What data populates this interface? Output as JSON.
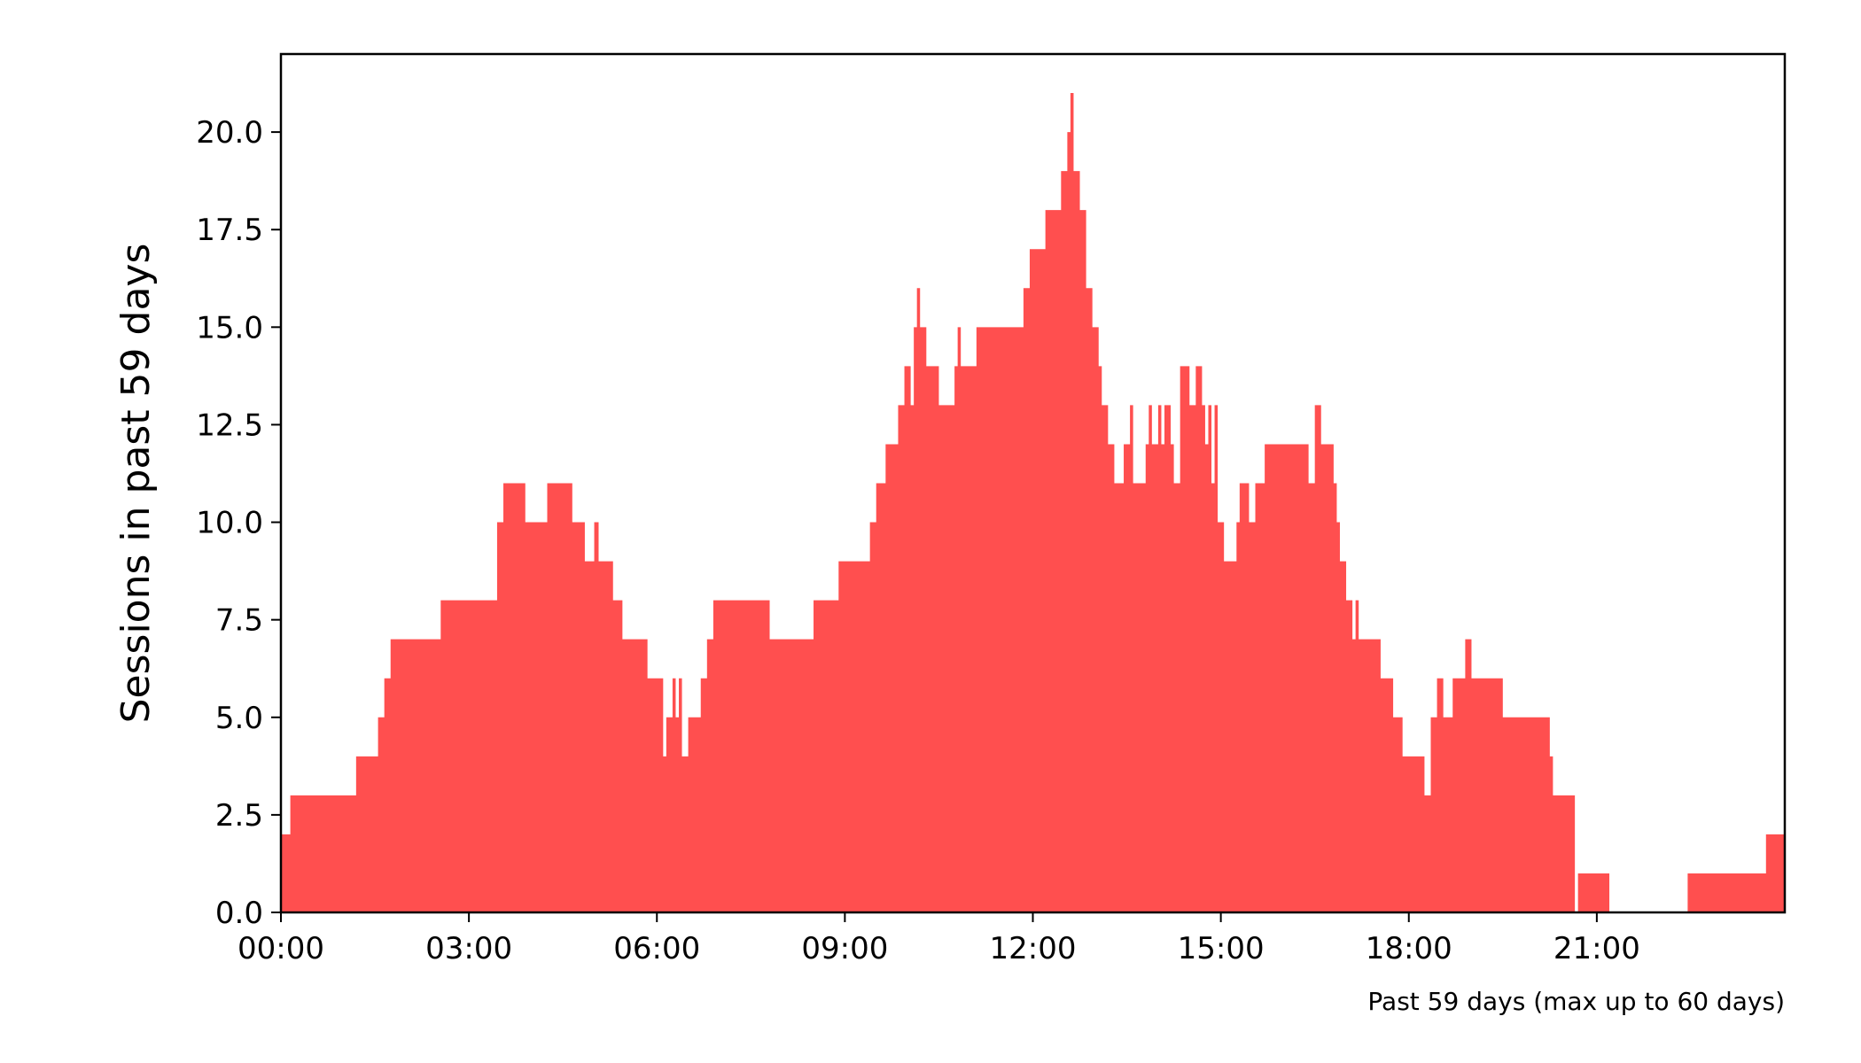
{
  "chart_data": {
    "type": "area",
    "step": true,
    "xlabel": "",
    "ylabel": "Sessions in past 59 days",
    "note": "Past 59 days (max up to 60 days)",
    "xlim": [
      0,
      24
    ],
    "ylim": [
      0,
      22
    ],
    "x_unit": "hour of day",
    "x_ticks": [
      {
        "value": 0,
        "label": "00:00"
      },
      {
        "value": 3,
        "label": "03:00"
      },
      {
        "value": 6,
        "label": "06:00"
      },
      {
        "value": 9,
        "label": "09:00"
      },
      {
        "value": 12,
        "label": "12:00"
      },
      {
        "value": 15,
        "label": "15:00"
      },
      {
        "value": 18,
        "label": "18:00"
      },
      {
        "value": 21,
        "label": "21:00"
      }
    ],
    "y_ticks": [
      {
        "value": 0,
        "label": "0.0"
      },
      {
        "value": 2.5,
        "label": "2.5"
      },
      {
        "value": 5,
        "label": "5.0"
      },
      {
        "value": 7.5,
        "label": "7.5"
      },
      {
        "value": 10,
        "label": "10.0"
      },
      {
        "value": 12.5,
        "label": "12.5"
      },
      {
        "value": 15,
        "label": "15.0"
      },
      {
        "value": 17.5,
        "label": "17.5"
      },
      {
        "value": 20,
        "label": "20.0"
      }
    ],
    "fill_color": "#ff4f4f",
    "grid": false,
    "points": [
      [
        0.0,
        2
      ],
      [
        0.15,
        3
      ],
      [
        1.2,
        4
      ],
      [
        1.55,
        5
      ],
      [
        1.65,
        6
      ],
      [
        1.75,
        7
      ],
      [
        2.55,
        8
      ],
      [
        3.45,
        10
      ],
      [
        3.55,
        11
      ],
      [
        3.9,
        10
      ],
      [
        4.25,
        11
      ],
      [
        4.65,
        10
      ],
      [
        4.85,
        9
      ],
      [
        5.0,
        10
      ],
      [
        5.07,
        9
      ],
      [
        5.3,
        8
      ],
      [
        5.45,
        7
      ],
      [
        5.85,
        6
      ],
      [
        6.1,
        4
      ],
      [
        6.15,
        5
      ],
      [
        6.25,
        6
      ],
      [
        6.3,
        5
      ],
      [
        6.35,
        6
      ],
      [
        6.4,
        4
      ],
      [
        6.5,
        5
      ],
      [
        6.7,
        6
      ],
      [
        6.8,
        7
      ],
      [
        6.9,
        8
      ],
      [
        7.8,
        7
      ],
      [
        8.5,
        8
      ],
      [
        8.9,
        9
      ],
      [
        9.4,
        10
      ],
      [
        9.5,
        11
      ],
      [
        9.65,
        12
      ],
      [
        9.85,
        13
      ],
      [
        9.95,
        14
      ],
      [
        10.05,
        13
      ],
      [
        10.1,
        15
      ],
      [
        10.15,
        16
      ],
      [
        10.2,
        15
      ],
      [
        10.3,
        14
      ],
      [
        10.5,
        13
      ],
      [
        10.6,
        13
      ],
      [
        10.75,
        14
      ],
      [
        10.8,
        15
      ],
      [
        10.85,
        14
      ],
      [
        11.1,
        15
      ],
      [
        11.85,
        16
      ],
      [
        11.95,
        17
      ],
      [
        12.2,
        18
      ],
      [
        12.45,
        19
      ],
      [
        12.55,
        20
      ],
      [
        12.6,
        21
      ],
      [
        12.65,
        19
      ],
      [
        12.75,
        18
      ],
      [
        12.85,
        16
      ],
      [
        12.95,
        15
      ],
      [
        13.05,
        14
      ],
      [
        13.1,
        13
      ],
      [
        13.2,
        12
      ],
      [
        13.3,
        11
      ],
      [
        13.45,
        12
      ],
      [
        13.55,
        13
      ],
      [
        13.6,
        11
      ],
      [
        13.7,
        11
      ],
      [
        13.8,
        12
      ],
      [
        13.85,
        13
      ],
      [
        13.9,
        12
      ],
      [
        14.0,
        13
      ],
      [
        14.05,
        12
      ],
      [
        14.1,
        13
      ],
      [
        14.2,
        12
      ],
      [
        14.25,
        11
      ],
      [
        14.35,
        14
      ],
      [
        14.5,
        13
      ],
      [
        14.6,
        14
      ],
      [
        14.7,
        13
      ],
      [
        14.75,
        12
      ],
      [
        14.8,
        13
      ],
      [
        14.85,
        11
      ],
      [
        14.9,
        13
      ],
      [
        14.95,
        10
      ],
      [
        15.05,
        9
      ],
      [
        15.25,
        10
      ],
      [
        15.3,
        11
      ],
      [
        15.45,
        10
      ],
      [
        15.55,
        11
      ],
      [
        15.7,
        12
      ],
      [
        16.0,
        12
      ],
      [
        16.4,
        11
      ],
      [
        16.5,
        13
      ],
      [
        16.6,
        12
      ],
      [
        16.8,
        11
      ],
      [
        16.85,
        10
      ],
      [
        16.9,
        9
      ],
      [
        17.0,
        8
      ],
      [
        17.1,
        7
      ],
      [
        17.15,
        8
      ],
      [
        17.2,
        7
      ],
      [
        17.55,
        6
      ],
      [
        17.75,
        5
      ],
      [
        17.9,
        4
      ],
      [
        18.25,
        3
      ],
      [
        18.35,
        5
      ],
      [
        18.45,
        6
      ],
      [
        18.55,
        5
      ],
      [
        18.7,
        6
      ],
      [
        18.9,
        7
      ],
      [
        19.0,
        6
      ],
      [
        19.5,
        5
      ],
      [
        20.25,
        4
      ],
      [
        20.3,
        3
      ],
      [
        20.65,
        0
      ],
      [
        20.7,
        1
      ],
      [
        21.2,
        0
      ],
      [
        22.45,
        1
      ],
      [
        23.7,
        2
      ],
      [
        24.0,
        2
      ]
    ]
  }
}
